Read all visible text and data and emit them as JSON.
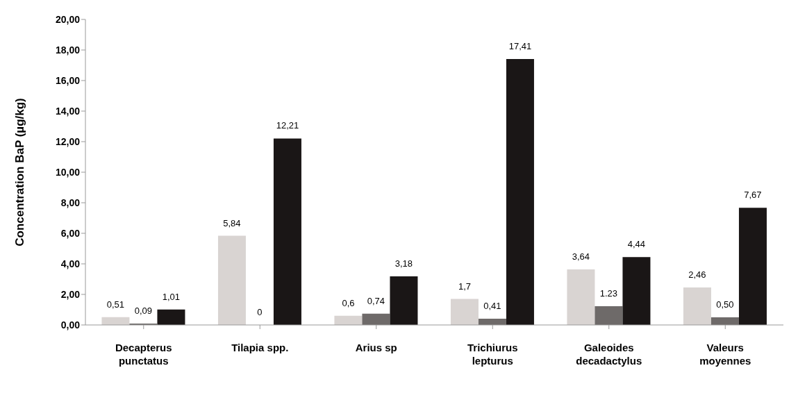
{
  "chart_data": {
    "type": "bar",
    "ylabel": "Concentration BaP (µg/kg)",
    "categories": [
      "Decapterus punctatus",
      "Tilapia spp.",
      "Arius sp",
      "Trichiurus lepturus",
      "Galeoides decadactylus",
      "Valeurs moyennes"
    ],
    "series": [
      {
        "color": "#d9d4d2",
        "values": [
          0.51,
          5.84,
          0.6,
          1.7,
          3.64,
          2.46
        ],
        "value_labels": [
          "0,51",
          "5,84",
          "0,6",
          "1,7",
          "3,64",
          "2,46"
        ]
      },
      {
        "color": "#6e6a69",
        "values": [
          0.09,
          0,
          0.74,
          0.41,
          1.23,
          0.5
        ],
        "value_labels": [
          "0,09",
          "0",
          "0,74",
          "0,41",
          "1.23",
          "0,50"
        ]
      },
      {
        "color": "#1a1616",
        "values": [
          1.01,
          12.21,
          3.18,
          17.41,
          4.44,
          7.67
        ],
        "value_labels": [
          "1,01",
          "12,21",
          "3,18",
          "17,41",
          "4,44",
          "7,67"
        ]
      }
    ],
    "ylim": [
      0,
      20
    ],
    "yticks": [
      {
        "value": 0,
        "label": "0,00"
      },
      {
        "value": 2,
        "label": "2,00"
      },
      {
        "value": 4,
        "label": "4,00"
      },
      {
        "value": 6,
        "label": "6,00"
      },
      {
        "value": 8,
        "label": "8,00"
      },
      {
        "value": 10,
        "label": "10,00"
      },
      {
        "value": 12,
        "label": "12,00"
      },
      {
        "value": 14,
        "label": "14,00"
      },
      {
        "value": 16,
        "label": "16,00"
      },
      {
        "value": 18,
        "label": "18,00"
      },
      {
        "value": 20,
        "label": "20,00"
      }
    ],
    "grid": false,
    "legend": false
  }
}
